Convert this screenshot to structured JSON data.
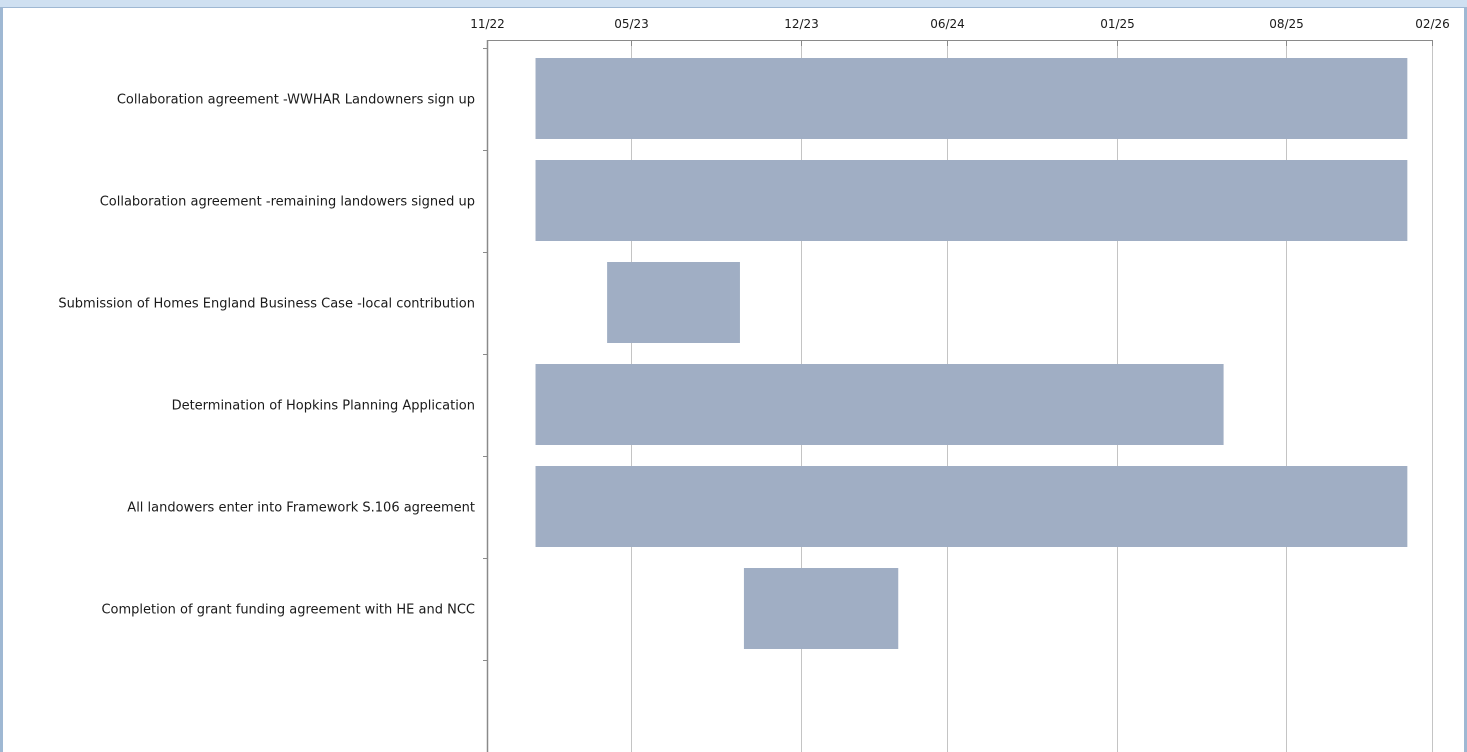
{
  "window": {
    "accent": "#cfe0f1",
    "border": "#9fb8d3"
  },
  "chart_data": {
    "type": "bar",
    "orientation": "horizontal-gantt",
    "title": "",
    "xlabel": "",
    "ylabel": "",
    "x_axis_position": "top",
    "xlim": [
      "2022-11-01",
      "2026-02-01"
    ],
    "ticks": [
      {
        "date": "2022-11-01",
        "label": "11/22"
      },
      {
        "date": "2023-05-01",
        "label": "05/23"
      },
      {
        "date": "2023-12-01",
        "label": "12/23"
      },
      {
        "date": "2024-06-01",
        "label": "06/24"
      },
      {
        "date": "2025-01-01",
        "label": "01/25"
      },
      {
        "date": "2025-08-01",
        "label": "08/25"
      },
      {
        "date": "2026-02-01",
        "label": "02/26"
      }
    ],
    "grid": true,
    "bar_color": "#a0aec4",
    "tasks": [
      {
        "name": "Collaboration agreement -WWHAR Landowners sign up",
        "start": "2023-01-01",
        "end": "2026-01-01"
      },
      {
        "name": "Collaboration agreement -remaining landowers signed up",
        "start": "2023-01-01",
        "end": "2026-01-01"
      },
      {
        "name": "Submission of Homes England Business Case -local contribution",
        "start": "2023-04-01",
        "end": "2023-09-15"
      },
      {
        "name": "Determination of Hopkins Planning Application",
        "start": "2023-01-01",
        "end": "2025-05-15"
      },
      {
        "name": "All landowers enter into Framework S.106 agreement",
        "start": "2023-01-01",
        "end": "2026-01-01"
      },
      {
        "name": "Completion of grant funding agreement with HE and NCC",
        "start": "2023-09-20",
        "end": "2024-04-01"
      }
    ]
  }
}
